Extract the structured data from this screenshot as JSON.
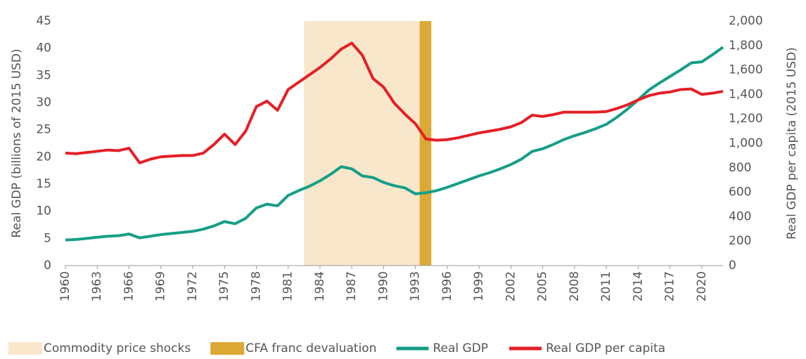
{
  "chart_data": {
    "type": "line",
    "x": [
      1960,
      1961,
      1962,
      1963,
      1964,
      1965,
      1966,
      1967,
      1968,
      1969,
      1970,
      1971,
      1972,
      1973,
      1974,
      1975,
      1976,
      1977,
      1978,
      1979,
      1980,
      1981,
      1982,
      1983,
      1984,
      1985,
      1986,
      1987,
      1988,
      1989,
      1990,
      1991,
      1992,
      1993,
      1994,
      1995,
      1996,
      1997,
      1998,
      1999,
      2000,
      2001,
      2002,
      2003,
      2004,
      2005,
      2006,
      2007,
      2008,
      2009,
      2010,
      2011,
      2012,
      2013,
      2014,
      2015,
      2016,
      2017,
      2018,
      2019,
      2020,
      2021,
      2022
    ],
    "series": [
      {
        "name": "Real GDP",
        "color": "#159e87",
        "axis": "y",
        "values": [
          4.7,
          4.8,
          5.0,
          5.2,
          5.4,
          5.5,
          5.8,
          5.1,
          5.4,
          5.7,
          5.9,
          6.1,
          6.3,
          6.7,
          7.3,
          8.1,
          7.7,
          8.7,
          10.6,
          11.3,
          11.0,
          12.9,
          13.8,
          14.6,
          15.6,
          16.8,
          18.2,
          17.8,
          16.5,
          16.2,
          15.3,
          14.7,
          14.3,
          13.2,
          13.4,
          13.8,
          14.4,
          15.1,
          15.8,
          16.5,
          17.1,
          17.8,
          18.6,
          19.6,
          21.0,
          21.5,
          22.3,
          23.2,
          23.9,
          24.5,
          25.2,
          26.0,
          27.3,
          28.8,
          30.5,
          32.3,
          33.6,
          34.8,
          36.0,
          37.3,
          37.5,
          38.8,
          40.2
        ]
      },
      {
        "name": "Real GDP per capita",
        "color": "#e41f26",
        "axis": "y2",
        "values": [
          920,
          915,
          925,
          935,
          945,
          940,
          960,
          840,
          870,
          890,
          895,
          900,
          900,
          920,
          990,
          1075,
          990,
          1100,
          1300,
          1345,
          1270,
          1440,
          1500,
          1560,
          1620,
          1690,
          1770,
          1820,
          1720,
          1530,
          1460,
          1330,
          1240,
          1160,
          1035,
          1025,
          1030,
          1045,
          1065,
          1085,
          1100,
          1115,
          1135,
          1170,
          1230,
          1220,
          1235,
          1255,
          1255,
          1255,
          1255,
          1260,
          1285,
          1315,
          1355,
          1390,
          1410,
          1420,
          1440,
          1445,
          1400,
          1410,
          1425
        ]
      }
    ],
    "shaded_regions": [
      {
        "name": "Commodity price shocks",
        "color": "#f8e7cb",
        "x": [
          1982.5,
          1993.4
        ]
      },
      {
        "name": "CFA franc devaluation",
        "color": "#dca935",
        "x": [
          1993.4,
          1994.5
        ]
      }
    ],
    "xlim": [
      1960,
      2022
    ],
    "xticks": [
      1960,
      1963,
      1966,
      1969,
      1972,
      1975,
      1978,
      1981,
      1984,
      1987,
      1990,
      1993,
      1996,
      1999,
      2002,
      2005,
      2008,
      2011,
      2014,
      2017,
      2020
    ],
    "ylim": [
      0,
      45
    ],
    "yticks": [
      0,
      5,
      10,
      15,
      20,
      25,
      30,
      35,
      40,
      45
    ],
    "y2lim": [
      0,
      2000
    ],
    "y2ticks": [
      0,
      200,
      400,
      600,
      800,
      {
        "value": 1000,
        "label": "1,000"
      },
      {
        "value": 1200,
        "label": "1,200"
      },
      {
        "value": 1400,
        "label": "1,400"
      },
      {
        "value": 1600,
        "label": "1,600"
      },
      {
        "value": 1800,
        "label": "1,800"
      },
      {
        "value": 2000,
        "label": "2,000"
      }
    ],
    "ylabel": "Real GDP (billions of 2015 USD)",
    "y2label": "Real GDP per capita (2015 USD)",
    "legend": "bottom"
  }
}
